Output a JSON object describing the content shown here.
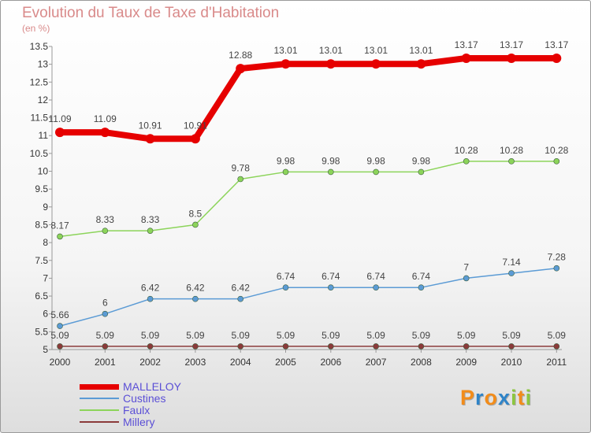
{
  "title": "Evolution du Taux de Taxe d'Habitation",
  "subtitle": "(en %)",
  "chart_data": {
    "type": "line",
    "title": "Evolution du Taux de Taxe d'Habitation",
    "subtitle": "(en %)",
    "x": [
      "2000",
      "2001",
      "2002",
      "2003",
      "2004",
      "2005",
      "2006",
      "2007",
      "2008",
      "2009",
      "2010",
      "2011"
    ],
    "y_ticks": [
      "5",
      "5.5",
      "6",
      "6.5",
      "7",
      "7.5",
      "8",
      "8.5",
      "9",
      "9.5",
      "10",
      "10.5",
      "11",
      "11.5",
      "12",
      "12.5",
      "13",
      "13.5"
    ],
    "ylim": [
      5,
      13.5
    ],
    "grid": false,
    "legend_position": "bottom-left",
    "series": [
      {
        "name": "MALLELOY",
        "color": "#e60000",
        "values": [
          11.09,
          11.09,
          10.91,
          10.91,
          12.88,
          13.01,
          13.01,
          13.01,
          13.01,
          13.17,
          13.17,
          13.17
        ],
        "labels": [
          "11.09",
          "11.09",
          "10.91",
          "10.91",
          "12.88",
          "13.01",
          "13.01",
          "13.01",
          "13.01",
          "13.17",
          "13.17",
          "13.17"
        ]
      },
      {
        "name": "Custines",
        "color": "#5b9bd5",
        "values": [
          5.66,
          6,
          6.42,
          6.42,
          6.42,
          6.74,
          6.74,
          6.74,
          6.74,
          7,
          7.14,
          7.28
        ],
        "labels": [
          "5.66",
          "6",
          "6.42",
          "6.42",
          "6.42",
          "6.74",
          "6.74",
          "6.74",
          "6.74",
          "7",
          "7.14",
          "7.28"
        ]
      },
      {
        "name": "Faulx",
        "color": "#8cd45a",
        "values": [
          8.17,
          8.33,
          8.33,
          8.5,
          9.78,
          9.98,
          9.98,
          9.98,
          9.98,
          10.28,
          10.28,
          10.28
        ],
        "labels": [
          "8.17",
          "8.33",
          "8.33",
          "8.5",
          "9.78",
          "9.98",
          "9.98",
          "9.98",
          "9.98",
          "10.28",
          "10.28",
          "10.28"
        ]
      },
      {
        "name": "Millery",
        "color": "#8b3a3a",
        "values": [
          5.09,
          5.09,
          5.09,
          5.09,
          5.09,
          5.09,
          5.09,
          5.09,
          5.09,
          5.09,
          5.09,
          5.09
        ],
        "labels": [
          "5.09",
          "5.09",
          "5.09",
          "5.09",
          "5.09",
          "5.09",
          "5.09",
          "5.09",
          "5.09",
          "5.09",
          "5.09",
          "5.09"
        ]
      }
    ]
  },
  "logo": {
    "text": "Proxiti",
    "colors": [
      "#f28c1a",
      "#2f84c8",
      "#f28c1a",
      "#2f84c8",
      "#8cc63f",
      "#f28c1a",
      "#8cc63f"
    ]
  }
}
